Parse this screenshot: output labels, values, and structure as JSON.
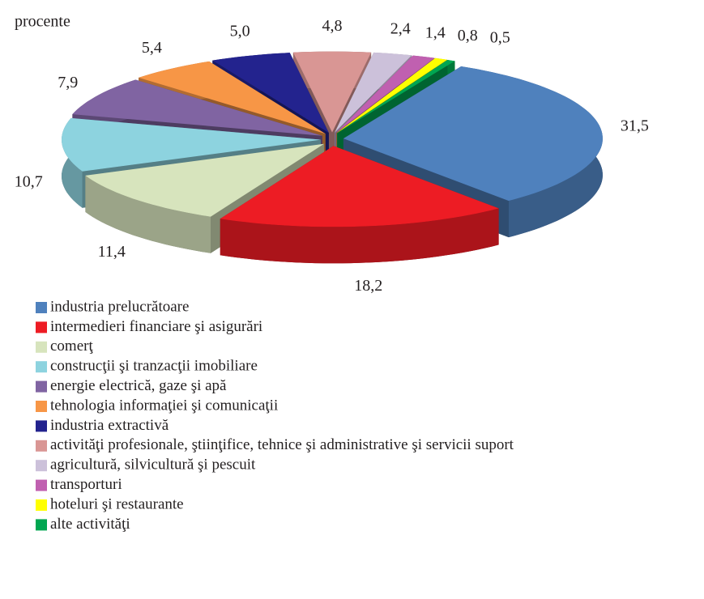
{
  "chart_data": {
    "type": "pie3d",
    "subtitle": "procente",
    "categories": [
      "industria prelucrătoare",
      "intermedieri financiare şi asigurări",
      "comerţ",
      "construcţii şi tranzacţii imobiliare",
      "energie electrică, gaze şi apă",
      "tehnologia informaţiei şi comunicaţii",
      "industria extractivă",
      "activităţi profesionale, ştiinţifice, tehnice şi administrative şi servicii suport",
      "agricultură, silvicultură şi pescuit",
      "transporturi",
      "hoteluri şi restaurante",
      "alte activităţi"
    ],
    "values": [
      31.5,
      18.2,
      11.4,
      10.7,
      7.9,
      5.4,
      5.0,
      4.8,
      2.4,
      1.4,
      0.8,
      0.5
    ],
    "value_labels": [
      "31,5",
      "18,2",
      "11,4",
      "10,7",
      "7,9",
      "5,4",
      "5,0",
      "4,8",
      "2,4",
      "1,4",
      "0,8",
      "0,5"
    ],
    "colors": [
      "#4f81bd",
      "#ed1c24",
      "#d7e4bd",
      "#8dd3df",
      "#8064a2",
      "#f79646",
      "#23238e",
      "#d99694",
      "#ccc1da",
      "#c060b0",
      "#ffff00",
      "#00a651"
    ],
    "legend": "bottom"
  }
}
